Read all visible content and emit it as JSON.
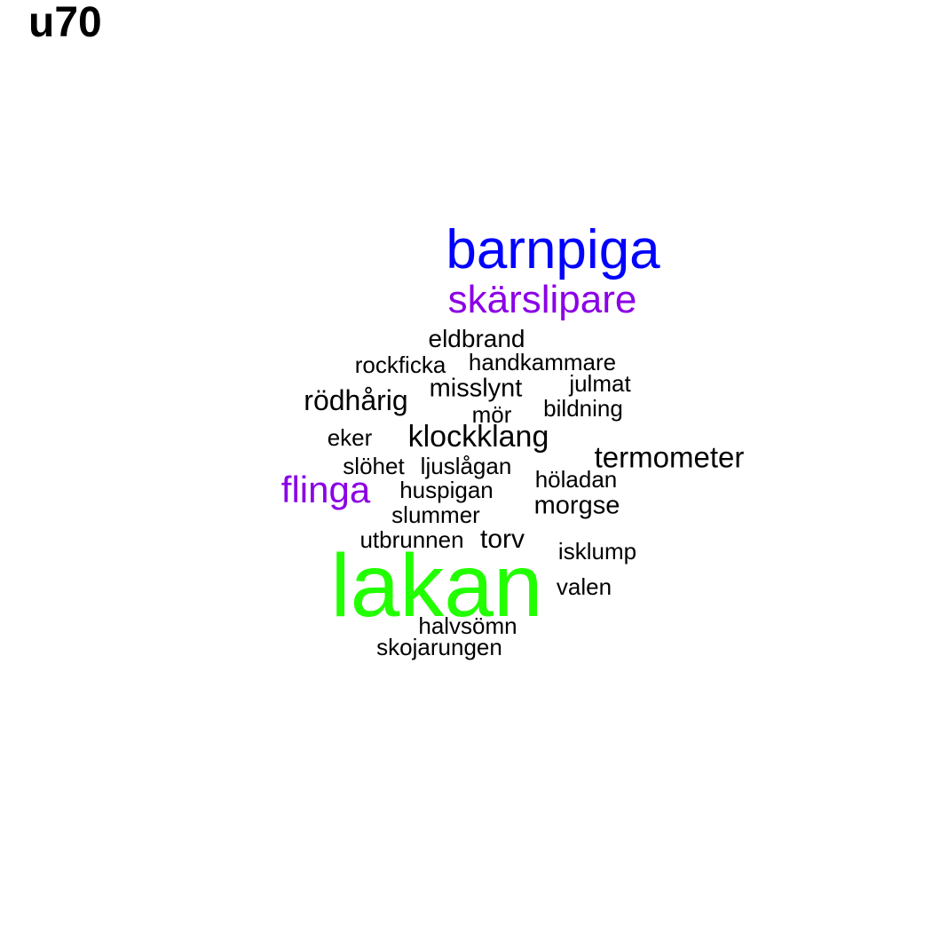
{
  "title": "u70",
  "colors": {
    "black": "#000000",
    "blue": "#0000ff",
    "purple": "#8b00e6",
    "green": "#22ff00"
  },
  "words": [
    {
      "text": "barnpiga",
      "color": "blue"
    },
    {
      "text": "skärslipare",
      "color": "purple"
    },
    {
      "text": "eldbrand",
      "color": "black"
    },
    {
      "text": "rockficka",
      "color": "black"
    },
    {
      "text": "handkammare",
      "color": "black"
    },
    {
      "text": "julmat",
      "color": "black"
    },
    {
      "text": "misslynt",
      "color": "black"
    },
    {
      "text": "rödhårig",
      "color": "black"
    },
    {
      "text": "mör",
      "color": "black"
    },
    {
      "text": "bildning",
      "color": "black"
    },
    {
      "text": "eker",
      "color": "black"
    },
    {
      "text": "klockklang",
      "color": "black"
    },
    {
      "text": "termometer",
      "color": "black"
    },
    {
      "text": "slöhet",
      "color": "black"
    },
    {
      "text": "ljuslågan",
      "color": "black"
    },
    {
      "text": "höladan",
      "color": "black"
    },
    {
      "text": "flinga",
      "color": "purple"
    },
    {
      "text": "huspigan",
      "color": "black"
    },
    {
      "text": "morgse",
      "color": "black"
    },
    {
      "text": "slummer",
      "color": "black"
    },
    {
      "text": "utbrunnen",
      "color": "black"
    },
    {
      "text": "torv",
      "color": "black"
    },
    {
      "text": "isklump",
      "color": "black"
    },
    {
      "text": "lakan",
      "color": "green"
    },
    {
      "text": "valen",
      "color": "black"
    },
    {
      "text": "halvsömn",
      "color": "black"
    },
    {
      "text": "skojarungen",
      "color": "black"
    }
  ]
}
